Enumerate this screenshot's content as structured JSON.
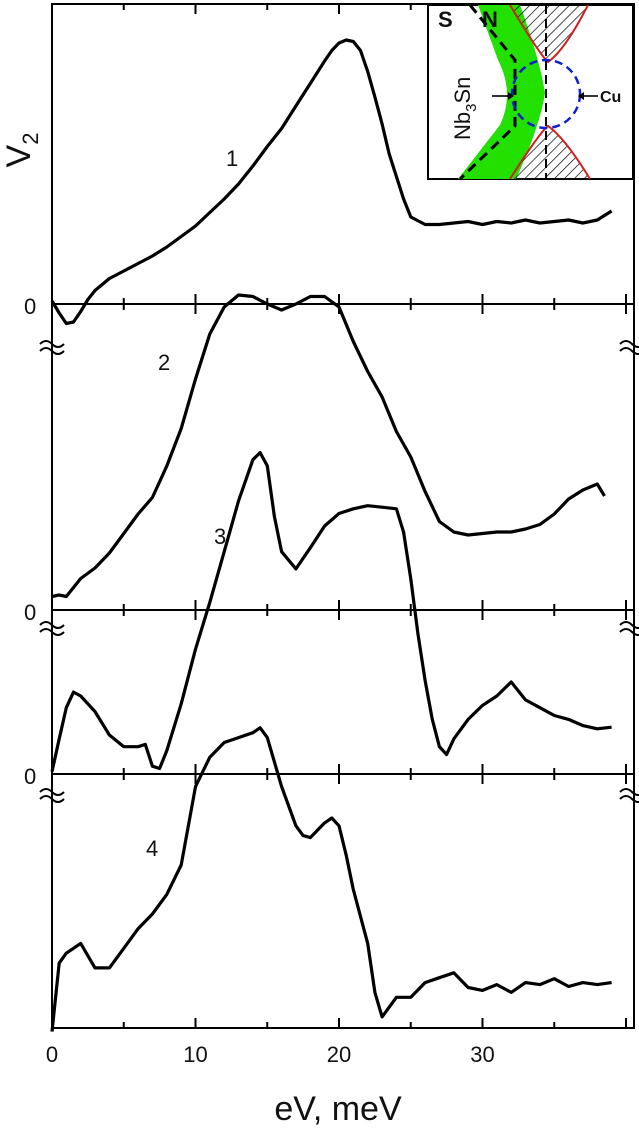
{
  "chart_data": {
    "type": "line",
    "xlabel": "eV, meV",
    "ylabel": "V2",
    "xlim": [
      0,
      40
    ],
    "x_ticks": [
      0,
      10,
      20,
      30
    ],
    "zero_label": "0",
    "series": [
      {
        "name": "1",
        "x": [
          0,
          0.5,
          1,
          1.5,
          2,
          2.5,
          3,
          4,
          5,
          6,
          7,
          8,
          9,
          10,
          11,
          12,
          13,
          14,
          15,
          16,
          17,
          18,
          19,
          19.5,
          20,
          20.5,
          21,
          21.5,
          22,
          22.5,
          23,
          23.5,
          24,
          24.5,
          25,
          26,
          27,
          28,
          29,
          30,
          31,
          32,
          33,
          34,
          35,
          36,
          37,
          38,
          39
        ],
        "y": [
          0.02,
          -0.06,
          -0.13,
          -0.12,
          -0.05,
          0.03,
          0.09,
          0.17,
          0.22,
          0.27,
          0.32,
          0.38,
          0.45,
          0.52,
          0.61,
          0.7,
          0.8,
          0.92,
          1.05,
          1.17,
          1.32,
          1.47,
          1.62,
          1.69,
          1.74,
          1.76,
          1.75,
          1.69,
          1.55,
          1.38,
          1.2,
          1.0,
          0.85,
          0.7,
          0.58,
          0.53,
          0.53,
          0.54,
          0.55,
          0.53,
          0.55,
          0.54,
          0.56,
          0.54,
          0.55,
          0.56,
          0.54,
          0.56,
          0.62
        ]
      },
      {
        "name": "2",
        "x": [
          0,
          0.5,
          1,
          2,
          3,
          4,
          5,
          6,
          7,
          8,
          9,
          10,
          11,
          12,
          13,
          14,
          15,
          16,
          17,
          18,
          19,
          20,
          21,
          22,
          23,
          24,
          25,
          26,
          27,
          28,
          29,
          30,
          31,
          32,
          33,
          34,
          35,
          36,
          37,
          38,
          38.5
        ],
        "y": [
          0.05,
          0.06,
          0.05,
          0.17,
          0.24,
          0.34,
          0.47,
          0.6,
          0.71,
          0.92,
          1.17,
          1.5,
          1.8,
          1.98,
          2.06,
          2.05,
          2.0,
          1.96,
          2.0,
          2.05,
          2.05,
          1.98,
          1.75,
          1.55,
          1.38,
          1.15,
          0.98,
          0.75,
          0.55,
          0.48,
          0.46,
          0.47,
          0.48,
          0.48,
          0.5,
          0.53,
          0.6,
          0.7,
          0.76,
          0.8,
          0.72
        ]
      },
      {
        "name": "3",
        "x": [
          0,
          0.5,
          1,
          1.5,
          2,
          3,
          4,
          5,
          6,
          6.5,
          7,
          7.5,
          8,
          9,
          10,
          11,
          12,
          13,
          14,
          14.5,
          15,
          15.5,
          16,
          17,
          18,
          19,
          20,
          21,
          22,
          23,
          24,
          24.5,
          25,
          25.5,
          26,
          26.5,
          27,
          27.5,
          28,
          29,
          30,
          31,
          32,
          33,
          34,
          35,
          36,
          37,
          38,
          39
        ],
        "y": [
          0.03,
          0.45,
          0.85,
          1.05,
          1.0,
          0.8,
          0.5,
          0.35,
          0.35,
          0.38,
          0.1,
          0.07,
          0.3,
          0.9,
          1.6,
          2.2,
          2.85,
          3.5,
          4.03,
          4.12,
          3.95,
          3.3,
          2.85,
          2.63,
          2.9,
          3.18,
          3.34,
          3.4,
          3.44,
          3.42,
          3.4,
          3.1,
          2.5,
          1.8,
          1.2,
          0.7,
          0.35,
          0.25,
          0.45,
          0.7,
          0.88,
          1.0,
          1.18,
          0.95,
          0.85,
          0.75,
          0.7,
          0.62,
          0.58,
          0.6
        ]
      },
      {
        "name": "4",
        "x": [
          0,
          0.5,
          1,
          1.5,
          2,
          3,
          4,
          5,
          6,
          7,
          8,
          9,
          10,
          11,
          12,
          13,
          14,
          14.5,
          15,
          16,
          17,
          17.5,
          18,
          19,
          19.5,
          20,
          20.5,
          21,
          22,
          22.5,
          23,
          24,
          25,
          26,
          27,
          28,
          29,
          30,
          31,
          32,
          33,
          34,
          35,
          36,
          37,
          38,
          39
        ],
        "y": [
          -1.2,
          -0.5,
          -0.4,
          -0.35,
          -0.3,
          -0.55,
          -0.55,
          -0.35,
          -0.15,
          0.0,
          0.2,
          0.5,
          1.3,
          1.6,
          1.75,
          1.8,
          1.85,
          1.9,
          1.8,
          1.3,
          0.9,
          0.8,
          0.78,
          0.93,
          0.98,
          0.9,
          0.6,
          0.25,
          -0.3,
          -0.8,
          -1.05,
          -0.85,
          -0.85,
          -0.7,
          -0.65,
          -0.6,
          -0.75,
          -0.78,
          -0.72,
          -0.8,
          -0.7,
          -0.72,
          -0.66,
          -0.74,
          -0.7,
          -0.72,
          -0.7
        ]
      }
    ]
  },
  "inset": {
    "label_s": "S",
    "label_n": "N",
    "label_left": "Nb",
    "label_left_sub": "3",
    "label_left_end": "Sn",
    "label_right": "Cu",
    "colors": {
      "green": "#22e000",
      "red": "#d02020",
      "blue": "#1020d0"
    }
  }
}
